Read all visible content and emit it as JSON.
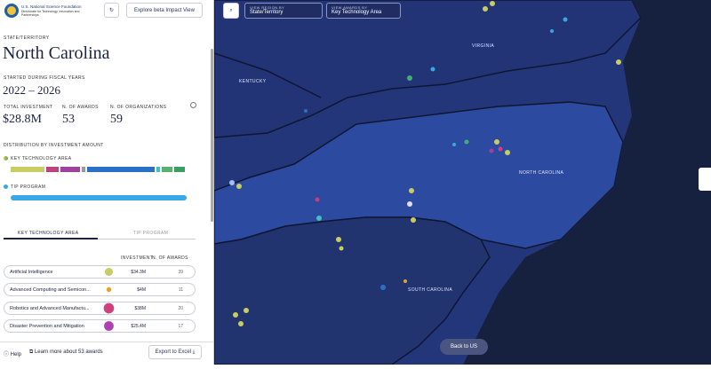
{
  "header": {
    "org": "U.S. National Science Foundation",
    "directorate": "Directorate for Technology, Innovation and Partnerships",
    "explore_button": "Explore beta Impact View"
  },
  "panel": {
    "region_label": "STATE/TERRITORY",
    "title": "North Carolina",
    "years_label": "STARTED DURING FISCAL YEARS",
    "years": "2022 – 2026",
    "stats": [
      {
        "label": "TOTAL INVESTMENT",
        "value": "$28.8M"
      },
      {
        "label": "N. OF AWARDS",
        "value": "53"
      },
      {
        "label": "N. OF ORGANIZATIONS",
        "value": "59"
      }
    ],
    "distribution_label": "DISTRIBUTION BY INVESTMENT AMOUNT",
    "legend": [
      "KEY TECHNOLOGY AREA",
      "TIP PROGRAM"
    ],
    "tabs": [
      "KEY TECHNOLOGY AREA",
      "TIP PROGRAM"
    ],
    "table": {
      "headers": [
        "INVESTMENT",
        "N. OF AWARDS"
      ],
      "rows": [
        [
          "Artificial Intelligence",
          "$34.3M",
          "39"
        ],
        [
          "Advanced Computing and Semicon...",
          "$4M",
          "11"
        ],
        [
          "Robotics and Advanced Manufactu...",
          "$38M",
          "20"
        ],
        [
          "Disaster Prevention and Mitigation",
          "$25.4M",
          "17"
        ]
      ]
    }
  },
  "footer": {
    "help": "Help",
    "learn_more": "Learn more about 53 awards",
    "export": "Export to Excel"
  },
  "map": {
    "region_control": {
      "label": "VIEW REGION BY",
      "value": "State/Territory"
    },
    "awards_control": {
      "label": "VIEW AWARDS BY",
      "value": "Key Technology Area"
    },
    "states": [
      "VIRGINIA",
      "KENTUCKY",
      "NORTH CAROLINA",
      "SOUTH CAROLINA"
    ],
    "back_button": "Back to US"
  }
}
